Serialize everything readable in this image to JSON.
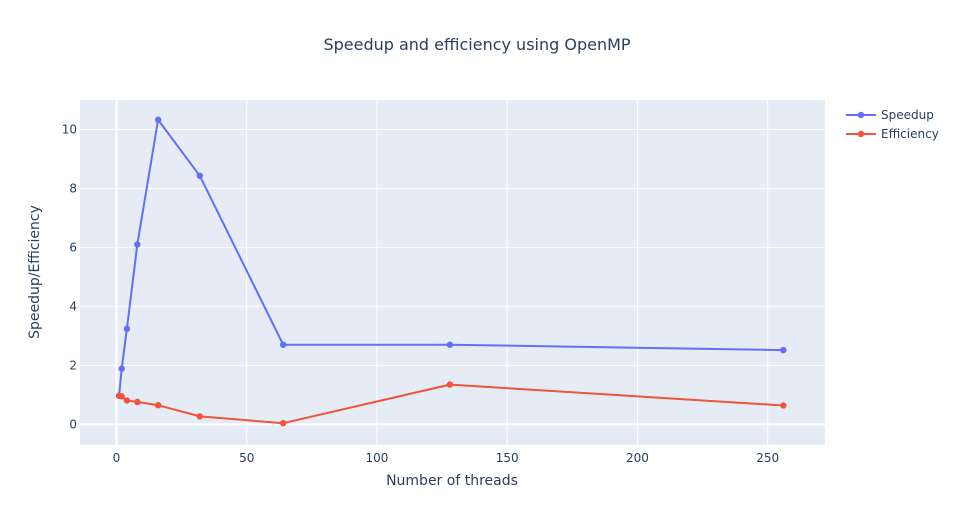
{
  "chart_data": {
    "type": "line",
    "title": "Speedup and efficiency using OpenMP",
    "xlabel": "Number of threads",
    "ylabel": "Speedup/Efficiency",
    "xlim": [
      -14,
      272
    ],
    "ylim": [
      -0.7,
      11.0
    ],
    "xticks": [
      0,
      50,
      100,
      150,
      200,
      250
    ],
    "yticks": [
      0,
      2,
      4,
      6,
      8,
      10
    ],
    "grid": true,
    "legend_position": "top-right",
    "x": [
      1,
      2,
      4,
      8,
      16,
      32,
      64,
      128,
      256
    ],
    "series": [
      {
        "name": "Speedup",
        "color": "#636efa",
        "values": [
          0.97,
          1.89,
          3.24,
          6.1,
          10.33,
          8.43,
          2.7,
          2.7,
          2.52
        ]
      },
      {
        "name": "Efficiency",
        "color": "#ef553b",
        "values": [
          0.97,
          0.95,
          0.81,
          0.76,
          0.65,
          0.27,
          0.04,
          1.35,
          0.64
        ]
      }
    ]
  },
  "colors": {
    "plot_background": "#e5ecf6",
    "grid": "#ffffff",
    "text": "#2a3f5f"
  }
}
